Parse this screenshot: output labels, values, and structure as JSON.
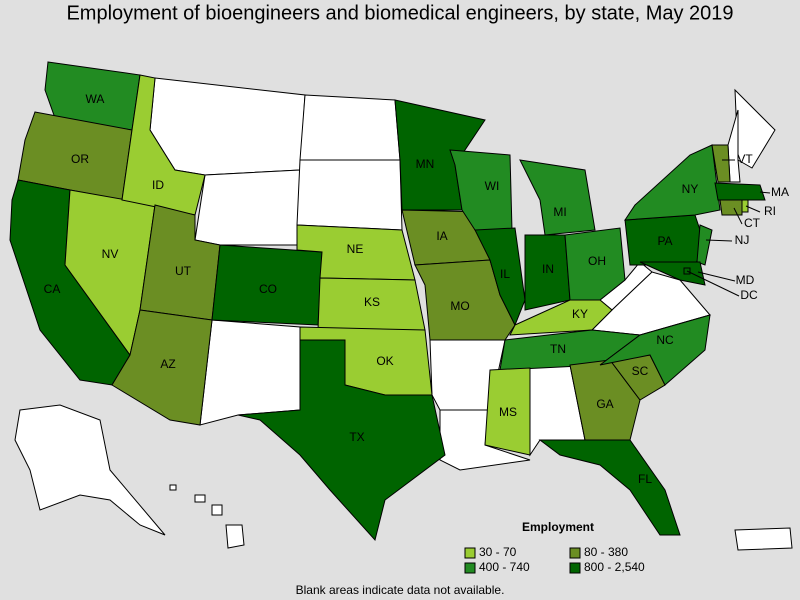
{
  "header": {
    "title": "Employment of bioengineers and biomedical engineers, by state, May 2019"
  },
  "legend": {
    "title": "Employment",
    "bins": [
      {
        "label": "30 - 70",
        "color": "#9acd32"
      },
      {
        "label": "80 - 380",
        "color": "#6b8e23"
      },
      {
        "label": "400 - 740",
        "color": "#228b22"
      },
      {
        "label": "800 - 2,540",
        "color": "#006400"
      }
    ]
  },
  "states": [
    {
      "label": "WA",
      "bin": 2
    },
    {
      "label": "OR",
      "bin": 1
    },
    {
      "label": "CA",
      "bin": 3
    },
    {
      "label": "NV",
      "bin": 0
    },
    {
      "label": "ID",
      "bin": 0
    },
    {
      "label": "UT",
      "bin": 1
    },
    {
      "label": "AZ",
      "bin": 1
    },
    {
      "label": "CO",
      "bin": 3
    },
    {
      "label": "NE",
      "bin": 0
    },
    {
      "label": "KS",
      "bin": 0
    },
    {
      "label": "OK",
      "bin": 0
    },
    {
      "label": "TX",
      "bin": 3
    },
    {
      "label": "MN",
      "bin": 3
    },
    {
      "label": "IA",
      "bin": 1
    },
    {
      "label": "MO",
      "bin": 1
    },
    {
      "label": "WI",
      "bin": 2
    },
    {
      "label": "IL",
      "bin": 3
    },
    {
      "label": "MI",
      "bin": 2
    },
    {
      "label": "IN",
      "bin": 3
    },
    {
      "label": "OH",
      "bin": 2
    },
    {
      "label": "KY",
      "bin": 0
    },
    {
      "label": "TN",
      "bin": 2
    },
    {
      "label": "MS",
      "bin": 0
    },
    {
      "label": "GA",
      "bin": 1
    },
    {
      "label": "FL",
      "bin": 3
    },
    {
      "label": "SC",
      "bin": 1
    },
    {
      "label": "NC",
      "bin": 2
    },
    {
      "label": "PA",
      "bin": 3
    },
    {
      "label": "NY",
      "bin": 2
    },
    {
      "label": "NJ",
      "bin": 2
    },
    {
      "label": "VT",
      "bin": 1
    },
    {
      "label": "MA",
      "bin": 3
    },
    {
      "label": "CT",
      "bin": 1
    },
    {
      "label": "RI",
      "bin": 0
    },
    {
      "label": "MD",
      "bin": 3
    },
    {
      "label": "DC",
      "bin": 3
    }
  ],
  "footnote": "Blank areas indicate data not available."
}
